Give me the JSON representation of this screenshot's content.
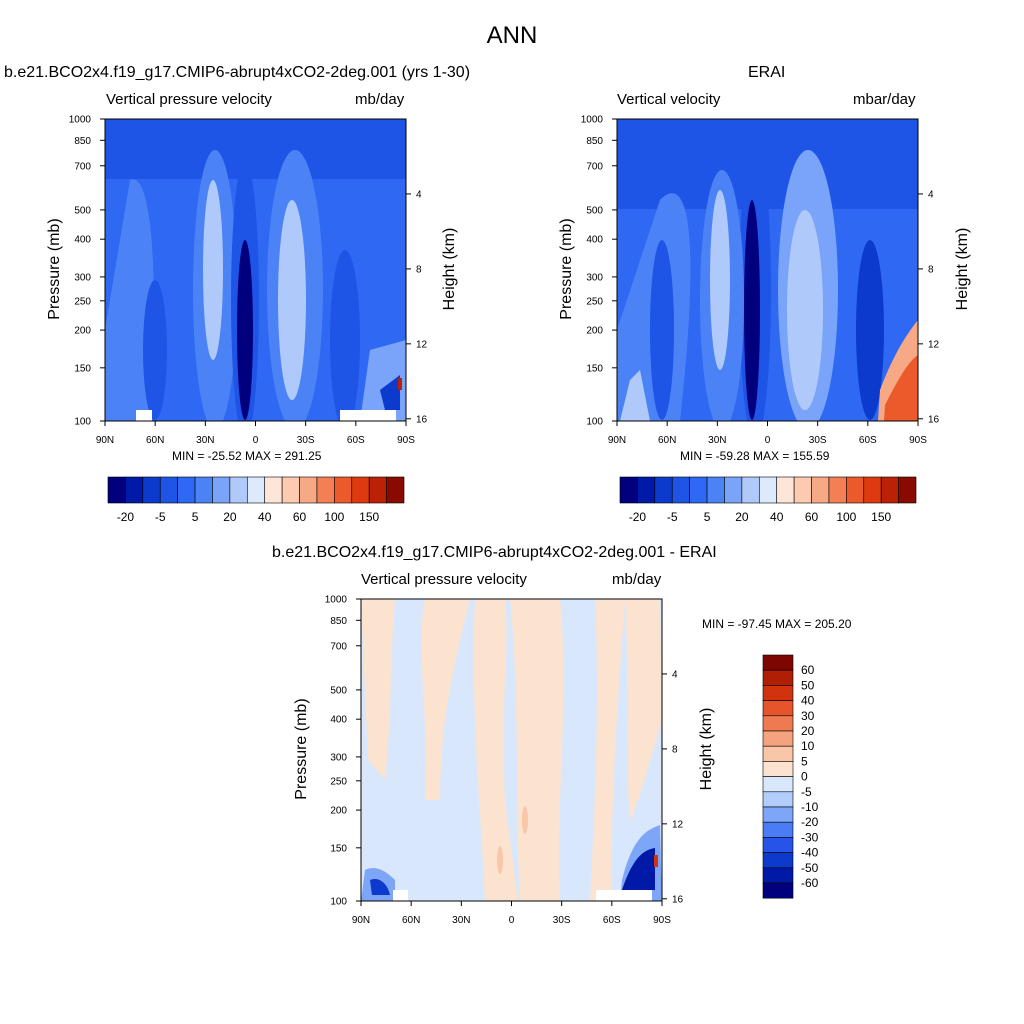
{
  "figure_title": "ANN",
  "colors": {
    "blue_scale": [
      "#00007f",
      "#0019a6",
      "#0c3acd",
      "#1e55e6",
      "#2f68f2",
      "#4b83f7",
      "#7aa4f9",
      "#b0c9fb",
      "#dde9fd"
    ],
    "red_scale": [
      "#fde6d7",
      "#fbcab0",
      "#f7a885",
      "#f37f55",
      "#ec5a2b",
      "#dd3a10",
      "#bb2205",
      "#8a0a00"
    ],
    "diff_blue": [
      "#00007f",
      "#0019a6",
      "#0c3acd",
      "#2653e8",
      "#4a7cf5",
      "#7ea6f8",
      "#b2ccfb",
      "#d9e7fc"
    ],
    "diff_red": [
      "#fbe3d0",
      "#f9c6a8",
      "#f5a37e",
      "#f07a4f",
      "#e5542a",
      "#d1330e",
      "#b01e03",
      "#7e0600"
    ]
  },
  "chart_data": [
    {
      "type": "heatmap",
      "name": "model",
      "case_title": "b.e21.BCO2x4.f19_g17.CMIP6-abrupt4xCO2-2deg.001 (yrs 1-30)",
      "variable": "Vertical pressure velocity",
      "units": "mb/day",
      "ylabel": "Pressure (mb)",
      "y2label": "Height (km)",
      "x_ticks": [
        "90N",
        "60N",
        "30N",
        "0",
        "30S",
        "60S",
        "90S"
      ],
      "y_ticks": [
        "100",
        "150",
        "200",
        "250",
        "300",
        "400",
        "500",
        "700",
        "850",
        "1000"
      ],
      "y2_ticks": [
        "16",
        "12",
        "8",
        "4"
      ],
      "ylim": [
        1000,
        100
      ],
      "y_scale": "log",
      "xlim": [
        90,
        -90
      ],
      "min": -25.52,
      "max": 291.25,
      "min_max_text": "MIN = -25.52  MAX = 291.25",
      "colorbar_labels": [
        "-20",
        "-5",
        "5",
        "20",
        "40",
        "60",
        "100",
        "150"
      ],
      "colorbar_placement": "bottom"
    },
    {
      "type": "heatmap",
      "name": "obs",
      "case_title": "ERAI",
      "variable": "Vertical velocity",
      "units": "mbar/day",
      "ylabel": "Pressure (mb)",
      "y2label": "Height (km)",
      "x_ticks": [
        "90N",
        "60N",
        "30N",
        "0",
        "30S",
        "60S",
        "90S"
      ],
      "y_ticks": [
        "100",
        "150",
        "200",
        "250",
        "300",
        "400",
        "500",
        "700",
        "850",
        "1000"
      ],
      "y2_ticks": [
        "16",
        "12",
        "8",
        "4"
      ],
      "ylim": [
        1000,
        100
      ],
      "y_scale": "log",
      "xlim": [
        90,
        -90
      ],
      "min": -59.28,
      "max": 155.59,
      "min_max_text": "MIN = -59.28  MAX = 155.59",
      "colorbar_labels": [
        "-20",
        "-5",
        "5",
        "20",
        "40",
        "60",
        "100",
        "150"
      ],
      "colorbar_placement": "bottom"
    },
    {
      "type": "heatmap",
      "name": "diff",
      "case_title": "b.e21.BCO2x4.f19_g17.CMIP6-abrupt4xCO2-2deg.001 - ERAI",
      "variable": "Vertical pressure velocity",
      "units": "mb/day",
      "ylabel": "Pressure (mb)",
      "y2label": "Height (km)",
      "x_ticks": [
        "90N",
        "60N",
        "30N",
        "0",
        "30S",
        "60S",
        "90S"
      ],
      "y_ticks": [
        "100",
        "150",
        "200",
        "250",
        "300",
        "400",
        "500",
        "700",
        "850",
        "1000"
      ],
      "y2_ticks": [
        "16",
        "12",
        "8",
        "4"
      ],
      "ylim": [
        1000,
        100
      ],
      "y_scale": "log",
      "xlim": [
        90,
        -90
      ],
      "min": -97.45,
      "max": 205.2,
      "min_max_text": "MIN = -97.45  MAX = 205.20",
      "colorbar_labels": [
        "60",
        "50",
        "40",
        "30",
        "20",
        "10",
        "5",
        "0",
        "-5",
        "-10",
        "-20",
        "-30",
        "-40",
        "-50",
        "-60"
      ],
      "colorbar_placement": "right"
    }
  ]
}
